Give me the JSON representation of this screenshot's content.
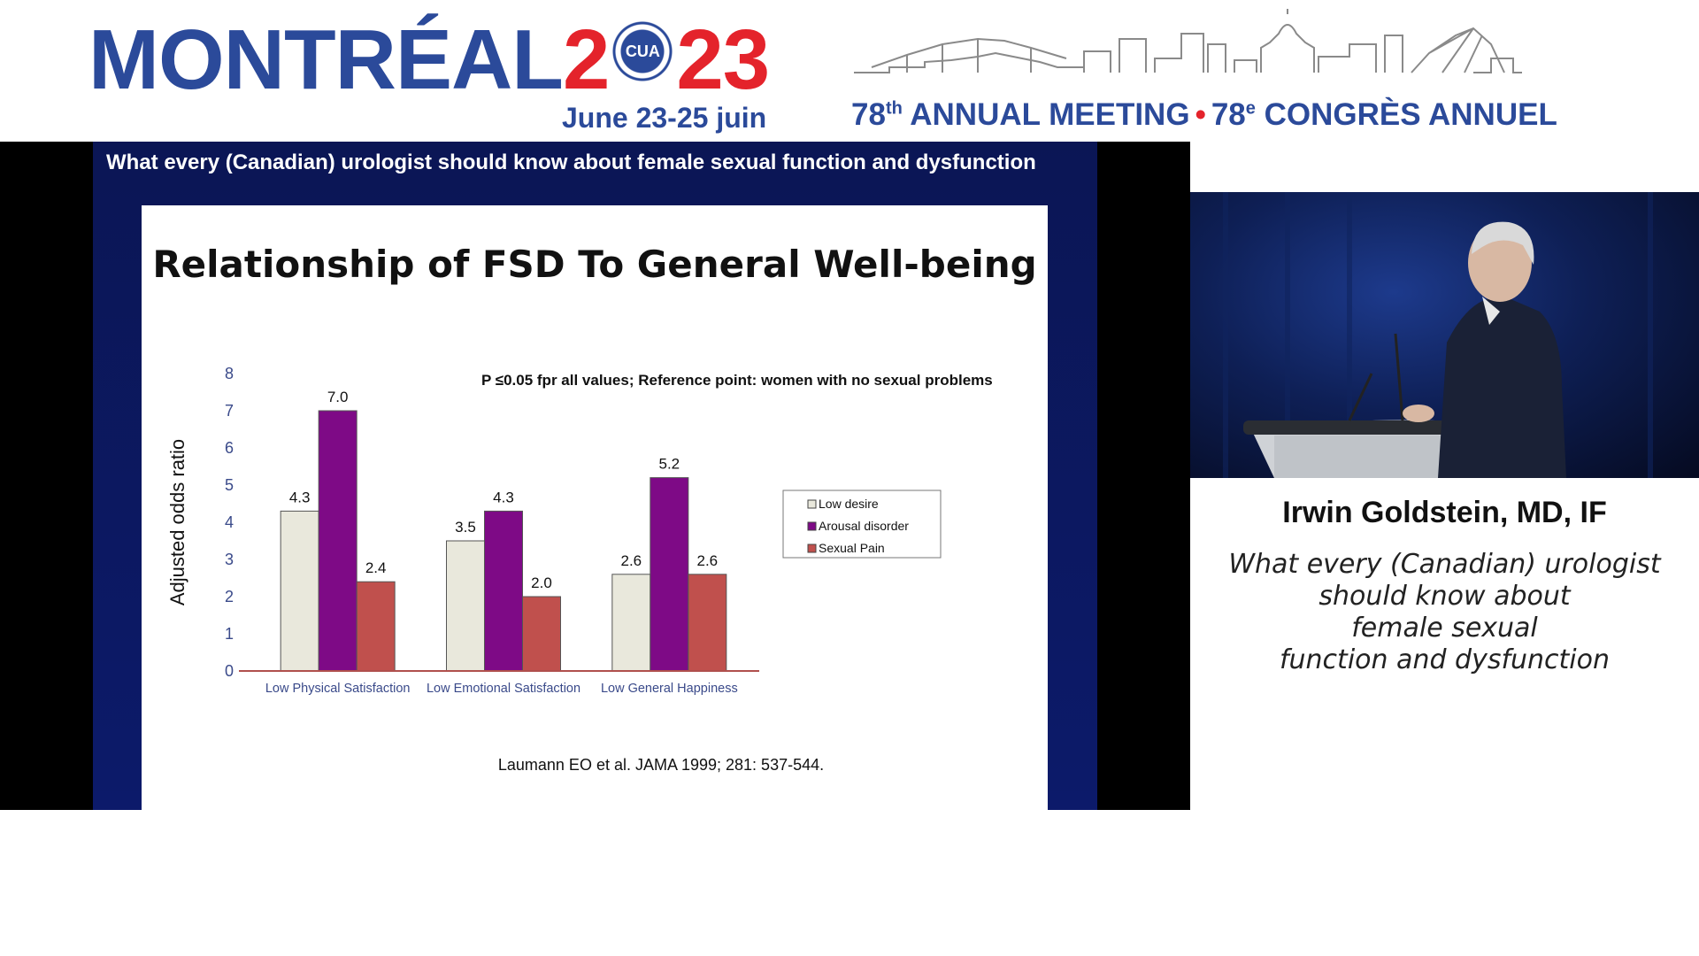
{
  "header": {
    "city": "MONTRÉAL",
    "year_left": "2",
    "year_right": "23",
    "seal_label": "CUA",
    "dates": "June 23-25 juin",
    "meeting_en_num": "78",
    "meeting_en_sup": "th",
    "meeting_en_text": " ANNUAL MEETING",
    "meeting_fr_num": "78",
    "meeting_fr_sup": "e",
    "meeting_fr_text": " CONGRÈS ANNUEL",
    "colors": {
      "brand_blue": "#2b4a9a",
      "brand_red": "#e4232b"
    }
  },
  "slide": {
    "heading": "What every (Canadian) urologist should know about female sexual function and dysfunction",
    "chart_title": "Relationship of FSD To General Well-being",
    "note": "P ≤0.05 fpr all values; Reference point: women with no sexual problems",
    "source": "Laumann EO et al. JAMA 1999; 281: 537-544."
  },
  "chart_data": {
    "type": "bar",
    "title": "Relationship of FSD To General Well-being",
    "ylabel": "Adjusted odds ratio",
    "xlabel": "",
    "ylim": [
      0,
      8
    ],
    "yticks": [
      "0",
      "1",
      "2",
      "3",
      "4",
      "5",
      "6",
      "7",
      "8"
    ],
    "categories": [
      "Low Physical Satisfaction",
      "Low Emotional Satisfaction",
      "Low General Happiness"
    ],
    "series": [
      {
        "name": "Low desire",
        "color": "#e9e8dc",
        "values": [
          4.3,
          3.5,
          2.6
        ],
        "labels": [
          "4.3",
          "3.5",
          "2.6"
        ]
      },
      {
        "name": "Arousal disorder",
        "color": "#7e0a86",
        "values": [
          7.0,
          4.3,
          5.2
        ],
        "labels": [
          "7.0",
          "4.3",
          "5.2"
        ]
      },
      {
        "name": "Sexual Pain",
        "color": "#c0504d",
        "values": [
          2.4,
          2.0,
          2.6
        ],
        "labels": [
          "2.4",
          "2.0",
          "2.6"
        ]
      }
    ],
    "legend_position": "right",
    "grid": false
  },
  "speaker": {
    "name": "Irwin Goldstein, MD, IF",
    "talk_title_lines": [
      "What every (Canadian) urologist",
      "should know about",
      "female sexual",
      "function and dysfunction"
    ]
  }
}
